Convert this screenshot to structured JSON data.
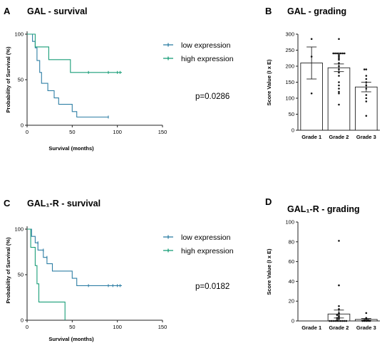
{
  "chart_data": [
    {
      "type": "line",
      "panel": "A",
      "title": "GAL - survival",
      "xlabel": "Survival (months)",
      "ylabel": "Probability of Survival (%)",
      "xlim": [
        0,
        150
      ],
      "ylim": [
        0,
        100
      ],
      "xticks": [
        "0",
        "50",
        "100",
        "150"
      ],
      "yticks": [
        "0",
        "50",
        "100"
      ],
      "annotation": "p=0.0286",
      "legend_position": "top-right",
      "series": [
        {
          "name": "low expression",
          "color": "#2f7fa5",
          "steps": [
            [
              0,
              100
            ],
            [
              6,
              100
            ],
            [
              6,
              92
            ],
            [
              9,
              92
            ],
            [
              9,
              85
            ],
            [
              11,
              85
            ],
            [
              11,
              71
            ],
            [
              14,
              71
            ],
            [
              14,
              58
            ],
            [
              16,
              58
            ],
            [
              16,
              46
            ],
            [
              23,
              46
            ],
            [
              23,
              38
            ],
            [
              30,
              38
            ],
            [
              30,
              30
            ],
            [
              35,
              30
            ],
            [
              35,
              23
            ],
            [
              50,
              23
            ],
            [
              50,
              15
            ],
            [
              55,
              15
            ],
            [
              55,
              9
            ],
            [
              90,
              9
            ]
          ],
          "censored": [
            [
              90,
              9
            ]
          ]
        },
        {
          "name": "high expression",
          "color": "#1a9e78",
          "steps": [
            [
              0,
              100
            ],
            [
              9,
              100
            ],
            [
              9,
              86
            ],
            [
              24,
              86
            ],
            [
              24,
              72
            ],
            [
              48,
              72
            ],
            [
              48,
              58
            ],
            [
              105,
              58
            ]
          ],
          "censored": [
            [
              68,
              58
            ],
            [
              90,
              58
            ],
            [
              100,
              58
            ],
            [
              103,
              58
            ]
          ]
        }
      ]
    },
    {
      "type": "bar",
      "panel": "B",
      "title": "GAL - grading",
      "ylabel": "Score Value (I x E)",
      "categories": [
        "Grade 1",
        "Grade 2",
        "Grade 3"
      ],
      "values": [
        210,
        195,
        135
      ],
      "errors": [
        50,
        12,
        15
      ],
      "ylim": [
        0,
        300
      ],
      "yticks": [
        "0",
        "50",
        "100",
        "150",
        "200",
        "250",
        "300"
      ],
      "points": [
        [
          285,
          230,
          115
        ],
        [
          285,
          240,
          240,
          240,
          240,
          240,
          240,
          240,
          235,
          230,
          225,
          220,
          210,
          200,
          190,
          180,
          170,
          150,
          140,
          130,
          120,
          115,
          80
        ],
        [
          190,
          190,
          170,
          160,
          150,
          140,
          130,
          110,
          100,
          90,
          45
        ]
      ]
    },
    {
      "type": "line",
      "panel": "C",
      "title": "GAL₁-R - survival",
      "xlabel": "Survival (months)",
      "ylabel": "Probability of Survival (%)",
      "xlim": [
        0,
        150
      ],
      "ylim": [
        0,
        100
      ],
      "xticks": [
        "0",
        "50",
        "100",
        "150"
      ],
      "yticks": [
        "0",
        "50",
        "100"
      ],
      "annotation": "p=0.0182",
      "legend_position": "top-right",
      "series": [
        {
          "name": "low expression",
          "color": "#2f7fa5",
          "steps": [
            [
              0,
              100
            ],
            [
              5,
              100
            ],
            [
              5,
              92
            ],
            [
              9,
              92
            ],
            [
              9,
              85
            ],
            [
              12,
              85
            ],
            [
              12,
              77
            ],
            [
              18,
              77
            ],
            [
              18,
              69
            ],
            [
              22,
              69
            ],
            [
              22,
              62
            ],
            [
              28,
              62
            ],
            [
              28,
              54
            ],
            [
              50,
              54
            ],
            [
              50,
              46
            ],
            [
              55,
              46
            ],
            [
              55,
              38
            ],
            [
              105,
              38
            ]
          ],
          "censored": [
            [
              12,
              85
            ],
            [
              18,
              77
            ],
            [
              22,
              69
            ],
            [
              68,
              38
            ],
            [
              90,
              38
            ],
            [
              95,
              38
            ],
            [
              100,
              38
            ],
            [
              103,
              38
            ]
          ]
        },
        {
          "name": "high expression",
          "color": "#1a9e78",
          "steps": [
            [
              0,
              100
            ],
            [
              4,
              100
            ],
            [
              4,
              80
            ],
            [
              9,
              80
            ],
            [
              9,
              60
            ],
            [
              11,
              60
            ],
            [
              11,
              40
            ],
            [
              13,
              40
            ],
            [
              13,
              20
            ],
            [
              42,
              20
            ],
            [
              42,
              0
            ]
          ],
          "censored": []
        }
      ]
    },
    {
      "type": "bar",
      "panel": "D",
      "title": "GAL₁-R - grading",
      "ylabel": "Score Value (I x E)",
      "categories": [
        "Grade 1",
        "Grade 2",
        "Grade 3"
      ],
      "values": [
        0,
        7,
        1.5
      ],
      "errors": [
        0,
        4,
        1
      ],
      "ylim": [
        0,
        100
      ],
      "yticks": [
        "0",
        "20",
        "40",
        "60",
        "80",
        "100"
      ],
      "points": [
        [],
        [
          81,
          36,
          15,
          12,
          8,
          7,
          6,
          5,
          4,
          3,
          2,
          1,
          0,
          0,
          0,
          0,
          0,
          0,
          0,
          0,
          0,
          0
        ],
        [
          8,
          3,
          2,
          1,
          1,
          0,
          0,
          0,
          0,
          0
        ]
      ]
    }
  ]
}
